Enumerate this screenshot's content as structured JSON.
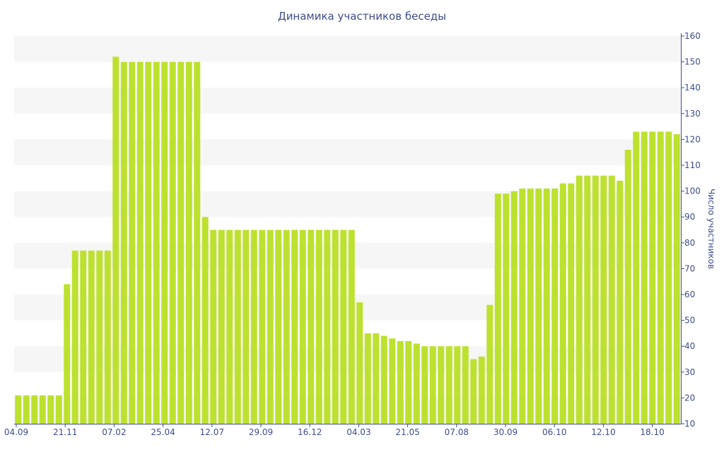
{
  "chart_data": {
    "type": "bar",
    "title": "Динамика участников беседы",
    "xlabel": "",
    "ylabel": "Число участников",
    "ylim": [
      10,
      160
    ],
    "y_ticks": [
      10,
      20,
      30,
      40,
      50,
      60,
      70,
      80,
      90,
      100,
      110,
      120,
      130,
      140,
      150,
      160
    ],
    "y_axis_position": "right",
    "grid": "alternating horizontal bands",
    "x_tick_labels": [
      "04.09",
      "21.11",
      "07.02",
      "25.04",
      "12.07",
      "29.09",
      "16.12",
      "04.03",
      "21.05",
      "07.08",
      "30.09",
      "06.10",
      "12.10",
      "18.10"
    ],
    "series": [
      {
        "color": "#bde12f",
        "values": [
          21,
          21,
          21,
          21,
          21,
          21,
          64,
          77,
          77,
          77,
          77,
          77,
          152,
          150,
          150,
          150,
          150,
          150,
          150,
          150,
          150,
          150,
          150,
          90,
          85,
          85,
          85,
          85,
          85,
          85,
          85,
          85,
          85,
          85,
          85,
          85,
          85,
          85,
          85,
          85,
          85,
          85,
          57,
          45,
          45,
          44,
          43,
          42,
          42,
          41,
          40,
          40,
          40,
          40,
          40,
          40,
          35,
          36,
          56,
          99,
          99,
          100,
          101,
          101,
          101,
          101,
          101,
          103,
          103,
          106,
          106,
          106,
          106,
          106,
          104,
          116,
          123,
          123,
          123,
          123,
          123,
          122
        ]
      }
    ]
  }
}
